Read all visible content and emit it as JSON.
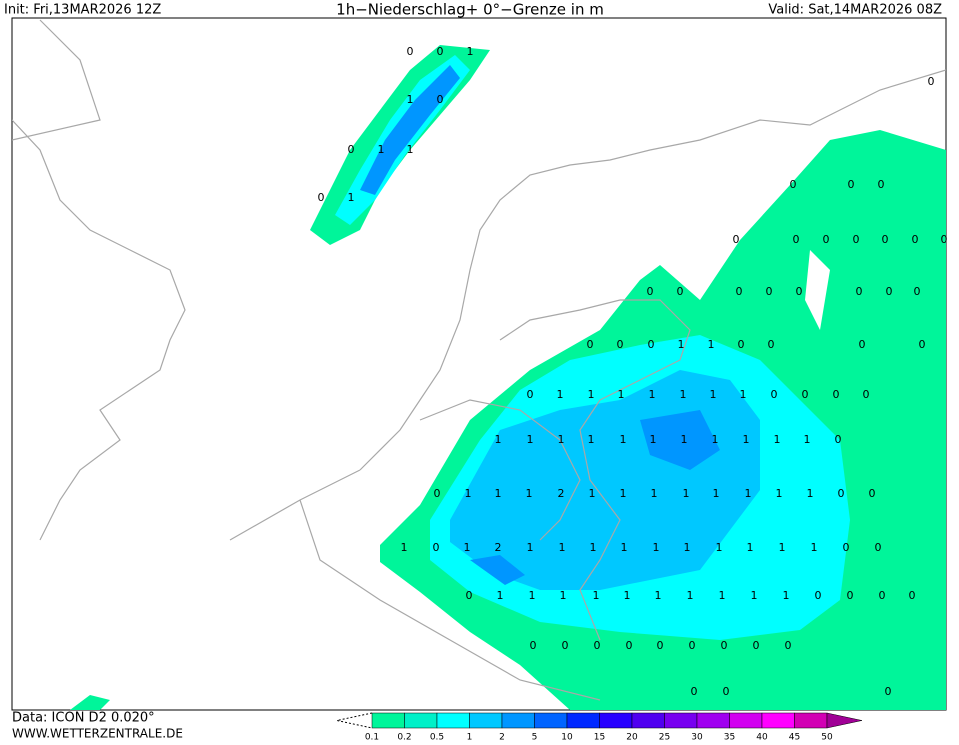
{
  "header": {
    "init": "Init: Fri,13MAR2026 12Z",
    "title": "1h−Niederschlag+ 0°−Grenze in m",
    "valid": "Valid: Sat,14MAR2026 08Z"
  },
  "footer": {
    "data": "Data: ICON D2 0.020°",
    "site": "WWW.WETTERZENTRALE.DE"
  },
  "legend": {
    "labels": [
      0.1,
      0.2,
      0.5,
      1,
      2,
      5,
      10,
      15,
      20,
      25,
      30,
      35,
      40,
      45,
      50
    ],
    "colors": [
      "#00f59a",
      "#00f0c8",
      "#00ffff",
      "#00c8ff",
      "#0096ff",
      "#0064ff",
      "#0028ff",
      "#2800ff",
      "#5000f0",
      "#7800f0",
      "#a000f0",
      "#d200f0",
      "#ff00ff",
      "#d200b4",
      "#a00096"
    ]
  },
  "map_labels": [
    [
      0,
      0,
      1
    ],
    [
      1,
      0
    ],
    [
      0,
      1,
      1
    ],
    [
      0,
      1
    ],
    [
      0
    ],
    [
      0,
      0,
      0
    ],
    [
      0,
      0,
      0,
      0,
      0,
      0,
      0
    ],
    [
      0,
      0,
      0,
      0,
      0,
      0,
      0,
      0
    ],
    [
      0,
      0,
      0,
      1,
      1,
      0,
      0,
      0,
      0
    ],
    [
      0,
      1,
      1,
      1,
      1,
      1,
      1,
      1,
      0,
      0,
      0,
      0
    ],
    [
      1,
      1,
      1,
      1,
      1,
      1,
      1,
      1,
      1,
      1,
      1,
      0
    ],
    [
      0,
      1,
      1,
      1,
      2,
      1,
      1,
      1,
      1,
      1,
      1,
      1,
      1,
      0,
      0
    ],
    [
      1,
      0,
      1,
      2,
      1,
      1,
      1,
      1,
      1,
      1,
      1,
      1,
      1,
      1,
      0,
      0
    ],
    [
      0,
      1,
      1,
      1,
      1,
      1,
      1,
      1,
      1,
      1,
      1,
      0,
      0,
      0,
      0
    ],
    [
      0,
      0,
      0,
      0,
      0,
      0,
      0,
      0,
      0
    ],
    [
      0,
      0,
      0
    ]
  ]
}
